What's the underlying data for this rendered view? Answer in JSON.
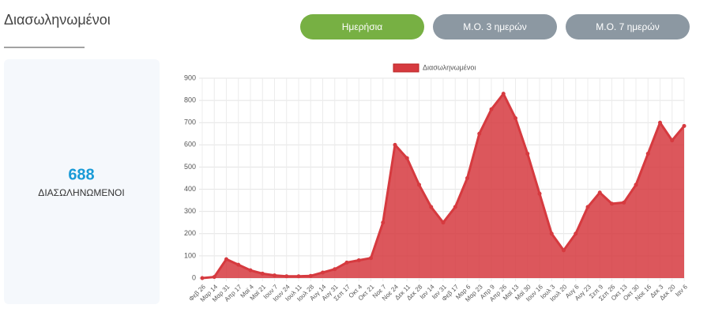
{
  "header": {
    "title": "Διασωληνωμένοι"
  },
  "buttons": [
    "Ημερήσια",
    "Μ.Ο. 3 ημερών",
    "Μ.Ο. 7 ημερών"
  ],
  "stat": {
    "value": 688,
    "label": "ΔΙΑΣΩΛΗΝΩΜΕΝΟΙ"
  },
  "chart_data": {
    "type": "area",
    "categories": [
      "Φεβ 26",
      "Μαρ 14",
      "Μαρ 31",
      "Απρ 17",
      "Μαϊ 4",
      "Μαϊ 21",
      "Ιουν 7",
      "Ιουν 24",
      "Ιουλ 11",
      "Ιουλ 28",
      "Αυγ 14",
      "Αυγ 31",
      "Σεπ 17",
      "Οκτ 4",
      "Οκτ 21",
      "Νοε 7",
      "Νοε 24",
      "Δεκ 11",
      "Δεκ 28",
      "Ιαν 14",
      "Ιαν 31",
      "Φεβ 17",
      "Μαρ 6",
      "Μαρ 23",
      "Απρ 9",
      "Απρ 26",
      "Μαϊ 13",
      "Μαϊ 30",
      "Ιουν 16",
      "Ιουλ 3",
      "Ιουλ 20",
      "Αυγ 6",
      "Αυγ 23",
      "Σεπ 9",
      "Σεπ 26",
      "Οκτ 13",
      "Οκτ 30",
      "Νοε 16",
      "Δεκ 3",
      "Δεκ 20",
      "Ιαν 6"
    ],
    "series": [
      {
        "name": "Διασωληνωμένοι",
        "color": "#d63a3f",
        "values": [
          0,
          5,
          85,
          60,
          35,
          20,
          12,
          8,
          8,
          10,
          25,
          40,
          70,
          80,
          90,
          250,
          600,
          540,
          420,
          320,
          250,
          320,
          450,
          650,
          760,
          830,
          720,
          560,
          380,
          200,
          125,
          200,
          320,
          385,
          335,
          340,
          420,
          560,
          700,
          620,
          685
        ]
      }
    ],
    "ylim": [
      0,
      900
    ],
    "yticks": [
      0,
      100,
      200,
      300,
      400,
      500,
      600,
      700,
      800,
      900
    ],
    "grid": true,
    "legend": "top"
  }
}
